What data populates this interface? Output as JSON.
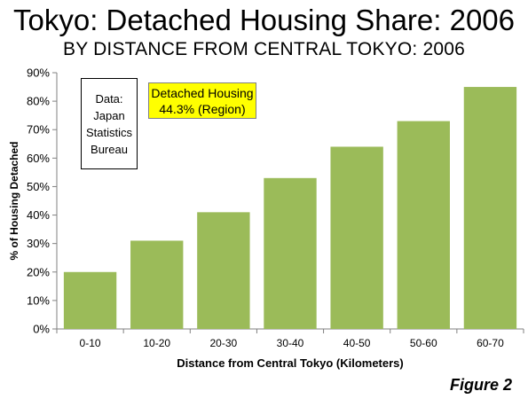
{
  "header": {
    "title": "Tokyo: Detached Housing Share: 2006",
    "subtitle": "BY DISTANCE FROM CENTRAL TOKYO: 2006"
  },
  "annotations": {
    "source_lines": [
      "Data:",
      "Japan",
      "Statistics",
      "Bureau"
    ],
    "highlight_lines": [
      "Detached Housing",
      "44.3% (Region)"
    ],
    "highlight_color": "#ffff00"
  },
  "figure_label": "Figure 2",
  "chart_data": {
    "type": "bar",
    "categories": [
      "0-10",
      "10-20",
      "20-30",
      "30-40",
      "40-50",
      "50-60",
      "60-70"
    ],
    "values": [
      20,
      31,
      41,
      53,
      64,
      73,
      85
    ],
    "xlabel": "Distance from Central Tokyo (Kilometers)",
    "ylabel": "% of Housing Detached",
    "ylim": [
      0,
      90
    ],
    "yticks": [
      0,
      10,
      20,
      30,
      40,
      50,
      60,
      70,
      80,
      90
    ],
    "ytick_labels": [
      "0%",
      "10%",
      "20%",
      "30%",
      "40%",
      "50%",
      "60%",
      "70%",
      "80%",
      "90%"
    ],
    "grid": false,
    "bar_color": "#9bbb59"
  }
}
